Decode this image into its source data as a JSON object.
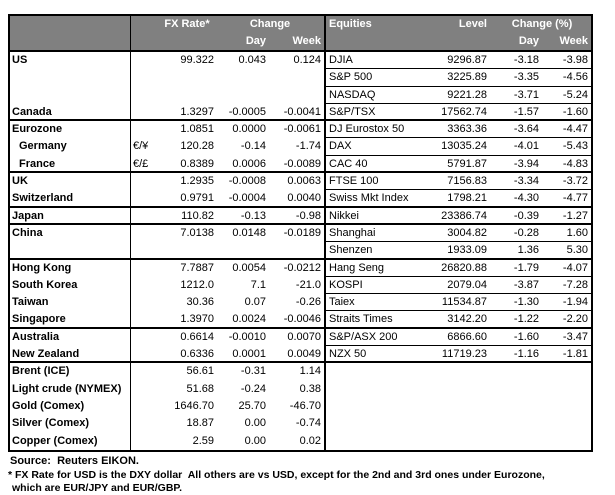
{
  "colors": {
    "header_bg": "#808080",
    "header_text": "#ffffff",
    "border": "#000000"
  },
  "table": {
    "header": {
      "fx_rate": "FX Rate*",
      "change": "Change",
      "day": "Day",
      "week": "Week",
      "equities": "Equities",
      "level": "Level",
      "change_pct": "Change (%)"
    },
    "rows": [
      {
        "left": {
          "name": "US",
          "indent": false,
          "symbol": "",
          "fx": "99.322",
          "day": "0.043",
          "week": "0.124"
        },
        "right": {
          "name": "DJIA",
          "level": "9296.87",
          "day": "-3.18",
          "week": "-3.98"
        },
        "section_end": false
      },
      {
        "left": {
          "name": "",
          "indent": false,
          "symbol": "",
          "fx": "",
          "day": "",
          "week": ""
        },
        "right": {
          "name": "S&P 500",
          "level": "3225.89",
          "day": "-3.35",
          "week": "-4.56"
        },
        "section_end": false
      },
      {
        "left": {
          "name": "",
          "indent": false,
          "symbol": "",
          "fx": "",
          "day": "",
          "week": ""
        },
        "right": {
          "name": "NASDAQ",
          "level": "9221.28",
          "day": "-3.71",
          "week": "-5.24"
        },
        "section_end": false
      },
      {
        "left": {
          "name": "Canada",
          "indent": false,
          "symbol": "",
          "fx": "1.3297",
          "day": "-0.0005",
          "week": "-0.0041"
        },
        "right": {
          "name": "S&P/TSX",
          "level": "17562.74",
          "day": "-1.57",
          "week": "-1.60"
        },
        "section_end": true
      },
      {
        "left": {
          "name": "Eurozone",
          "indent": false,
          "symbol": "",
          "fx": "1.0851",
          "day": "0.0000",
          "week": "-0.0061"
        },
        "right": {
          "name": "DJ Eurostox 50",
          "level": "3363.36",
          "day": "-3.64",
          "week": "-4.47"
        },
        "section_end": false
      },
      {
        "left": {
          "name": "Germany",
          "indent": true,
          "symbol": "€/¥",
          "fx": "120.28",
          "day": "-0.14",
          "week": "-1.74"
        },
        "right": {
          "name": "DAX",
          "level": "13035.24",
          "day": "-4.01",
          "week": "-5.43"
        },
        "section_end": false
      },
      {
        "left": {
          "name": "France",
          "indent": true,
          "symbol": "€/£",
          "fx": "0.8389",
          "day": "0.0006",
          "week": "-0.0089"
        },
        "right": {
          "name": "CAC 40",
          "level": "5791.87",
          "day": "-3.94",
          "week": "-4.83"
        },
        "section_end": true
      },
      {
        "left": {
          "name": "UK",
          "indent": false,
          "symbol": "",
          "fx": "1.2935",
          "day": "-0.0008",
          "week": "0.0063"
        },
        "right": {
          "name": "FTSE 100",
          "level": "7156.83",
          "day": "-3.34",
          "week": "-3.72"
        },
        "section_end": false
      },
      {
        "left": {
          "name": "Switzerland",
          "indent": false,
          "symbol": "",
          "fx": "0.9791",
          "day": "-0.0004",
          "week": "0.0040"
        },
        "right": {
          "name": "Swiss Mkt Index",
          "level": "1798.21",
          "day": "-4.30",
          "week": "-4.77"
        },
        "section_end": true
      },
      {
        "left": {
          "name": "Japan",
          "indent": false,
          "symbol": "",
          "fx": "110.82",
          "day": "-0.13",
          "week": "-0.98"
        },
        "right": {
          "name": "Nikkei",
          "level": "23386.74",
          "day": "-0.39",
          "week": "-1.27"
        },
        "section_end": true
      },
      {
        "left": {
          "name": "China",
          "indent": false,
          "symbol": "",
          "fx": "7.0138",
          "day": "0.0148",
          "week": "-0.0189"
        },
        "right": {
          "name": "Shanghai",
          "level": "3004.82",
          "day": "-0.28",
          "week": "1.60"
        },
        "section_end": false
      },
      {
        "left": {
          "name": "",
          "indent": false,
          "symbol": "",
          "fx": "",
          "day": "",
          "week": ""
        },
        "right": {
          "name": "Shenzen",
          "level": "1933.09",
          "day": "1.36",
          "week": "5.30"
        },
        "section_end": true
      },
      {
        "left": {
          "name": "Hong Kong",
          "indent": false,
          "symbol": "",
          "fx": "7.7887",
          "day": "0.0054",
          "week": "-0.0212"
        },
        "right": {
          "name": "Hang Seng",
          "level": "26820.88",
          "day": "-1.79",
          "week": "-4.07"
        },
        "section_end": false
      },
      {
        "left": {
          "name": "South Korea",
          "indent": false,
          "symbol": "",
          "fx": "1212.0",
          "day": "7.1",
          "week": "-21.0"
        },
        "right": {
          "name": "KOSPI",
          "level": "2079.04",
          "day": "-3.87",
          "week": "-7.28"
        },
        "section_end": false
      },
      {
        "left": {
          "name": "Taiwan",
          "indent": false,
          "symbol": "",
          "fx": "30.36",
          "day": "0.07",
          "week": "-0.26"
        },
        "right": {
          "name": "Taiex",
          "level": "11534.87",
          "day": "-1.30",
          "week": "-1.94"
        },
        "section_end": false
      },
      {
        "left": {
          "name": "Singapore",
          "indent": false,
          "symbol": "",
          "fx": "1.3970",
          "day": "0.0024",
          "week": "-0.0046"
        },
        "right": {
          "name": "Straits Times",
          "level": "3142.20",
          "day": "-1.22",
          "week": "-2.20"
        },
        "section_end": true
      },
      {
        "left": {
          "name": "Australia",
          "indent": false,
          "symbol": "",
          "fx": "0.6614",
          "day": "-0.0010",
          "week": "0.0070"
        },
        "right": {
          "name": "S&P/ASX 200",
          "level": "6866.60",
          "day": "-1.60",
          "week": "-3.47"
        },
        "section_end": false
      },
      {
        "left": {
          "name": "New Zealand",
          "indent": false,
          "symbol": "",
          "fx": "0.6336",
          "day": "0.0001",
          "week": "0.0049"
        },
        "right": {
          "name": "NZX 50",
          "level": "11719.23",
          "day": "-1.16",
          "week": "-1.81"
        },
        "section_end": true
      },
      {
        "left": {
          "name": "Brent (ICE)",
          "indent": false,
          "symbol": "",
          "fx": "56.61",
          "day": "-0.31",
          "week": "1.14"
        },
        "right": {
          "name": "",
          "level": "",
          "day": "",
          "week": ""
        },
        "section_end": false
      },
      {
        "left": {
          "name": "Light crude (NYMEX)",
          "indent": false,
          "symbol": "",
          "fx": "51.68",
          "day": "-0.24",
          "week": "0.38"
        },
        "right": {
          "name": "",
          "level": "",
          "day": "",
          "week": ""
        },
        "section_end": false
      },
      {
        "left": {
          "name": "Gold (Comex)",
          "indent": false,
          "symbol": "",
          "fx": "1646.70",
          "day": "25.70",
          "week": "-46.70"
        },
        "right": {
          "name": "",
          "level": "",
          "day": "",
          "week": ""
        },
        "section_end": false
      },
      {
        "left": {
          "name": "Silver (Comex)",
          "indent": false,
          "symbol": "",
          "fx": "18.87",
          "day": "0.00",
          "week": "-0.74"
        },
        "right": {
          "name": "",
          "level": "",
          "day": "",
          "week": ""
        },
        "section_end": false
      },
      {
        "left": {
          "name": "Copper (Comex)",
          "indent": false,
          "symbol": "",
          "fx": "2.59",
          "day": "0.00",
          "week": "0.02"
        },
        "right": {
          "name": "",
          "level": "",
          "day": "",
          "week": ""
        },
        "section_end": false
      }
    ]
  },
  "footer": {
    "source": "Source:  Reuters EIKON.",
    "footnote_line1": "* FX Rate for USD is the DXY dollar  All others are vs USD, except for the 2nd and 3rd ones under Eurozone,",
    "footnote_line2": "which are EUR/JPY and EUR/GBP."
  }
}
